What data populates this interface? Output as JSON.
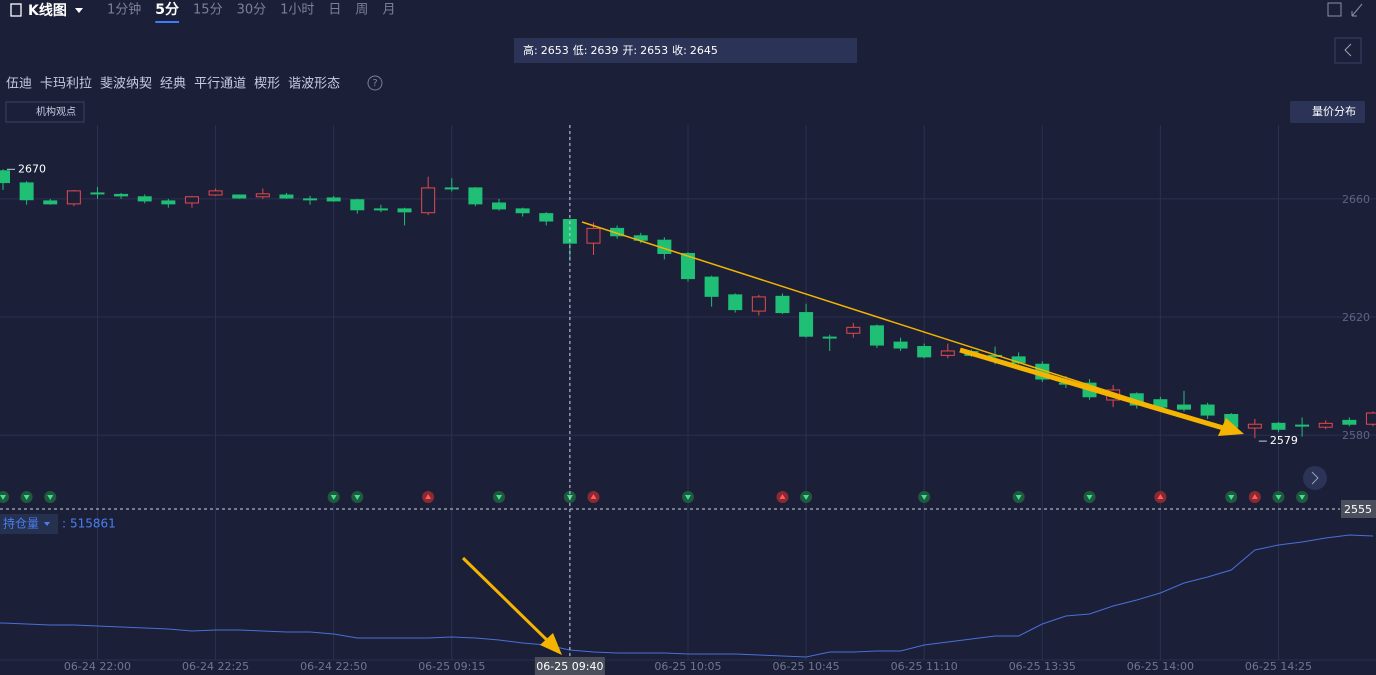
{
  "header": {
    "title": "K线图",
    "periods": [
      "1分钟",
      "5分",
      "15分",
      "30分",
      "1小时",
      "日",
      "周",
      "月"
    ],
    "active_period": 1
  },
  "tools": {
    "items": [
      "伍迪",
      "卡玛利拉",
      "斐波纳契",
      "经典",
      "平行通道",
      "楔形",
      "谐波形态"
    ],
    "help": "?",
    "institution": "机构观点",
    "volume_profile": "量价分布"
  },
  "tooltip": {
    "labels": [
      "高:",
      "低:",
      "开:",
      "收:"
    ]
  },
  "chart_data": {
    "type": "candlestick",
    "categories": [
      null,
      null,
      null,
      null,
      "06-24 22:00",
      null,
      null,
      null,
      null,
      "06-24 22:25",
      null,
      null,
      null,
      null,
      "06-24 22:50",
      null,
      null,
      null,
      null,
      "06-25 09:15",
      null,
      null,
      null,
      null,
      "06-25 09:40",
      null,
      null,
      null,
      null,
      "06-25 10:05",
      null,
      null,
      null,
      null,
      "06-25 10:45",
      null,
      null,
      null,
      null,
      "06-25 11:10",
      null,
      null,
      null,
      null,
      "06-25 13:35",
      null,
      null,
      null,
      null,
      "06-25 14:00",
      null,
      null,
      null,
      null,
      "06-25 14:25",
      null,
      null,
      null,
      null
    ],
    "open": [
      2669.5,
      2665.4,
      2659.3,
      2658.3,
      2662,
      2661.5,
      2660.7,
      2659.3,
      2658.6,
      2661.3,
      2661.3,
      2660.7,
      2661.3,
      2660,
      2660.3,
      2659.7,
      2656.6,
      2656.6,
      2655.3,
      2663.7,
      2663.7,
      2658.6,
      2656.6,
      2655,
      2653,
      2645,
      2650,
      2647.5,
      2646,
      2641.5,
      2633.5,
      2627.5,
      2622,
      2627,
      2621.5,
      2613.2,
      2614.5,
      2617,
      2611.5,
      2610,
      2607,
      2608.3,
      2607,
      2606.5,
      2604,
      2597.6,
      2597.6,
      2591.9,
      2594,
      2592,
      2590.2,
      2590.2,
      2587,
      2582.4,
      2584,
      2583.4,
      2582.7,
      2585,
      2583.7
    ],
    "high": [
      2670,
      2666,
      2660,
      2663,
      2664,
      2662,
      2661.5,
      2660,
      2661,
      2663.5,
      2661.5,
      2663.5,
      2662,
      2661,
      2661,
      2660,
      2658,
      2657,
      2667.5,
      2667,
      2664,
      2660,
      2657,
      2655.5,
      2653,
      2652,
      2651,
      2648.5,
      2647,
      2642,
      2634,
      2628,
      2627.5,
      2628,
      2624.5,
      2614,
      2618,
      2617.5,
      2613,
      2611,
      2611,
      2609,
      2610,
      2608,
      2605,
      2600,
      2599,
      2597,
      2594.5,
      2593,
      2595,
      2591,
      2587.5,
      2585.5,
      2584.5,
      2586,
      2585,
      2586,
      2588
    ],
    "low": [
      2663,
      2658,
      2658,
      2657.5,
      2660,
      2660,
      2658.5,
      2657,
      2657,
      2661,
      2660,
      2660,
      2660,
      2658,
      2659,
      2655,
      2655.5,
      2651,
      2654.5,
      2662.5,
      2657.5,
      2656,
      2654,
      2651,
      2639,
      2641,
      2646.5,
      2645,
      2639.5,
      2632,
      2623.5,
      2621.5,
      2620.5,
      2621,
      2613,
      2608.5,
      2613,
      2609.5,
      2608.5,
      2606,
      2606,
      2606.5,
      2604,
      2604,
      2598,
      2596,
      2592,
      2589.5,
      2589,
      2588.5,
      2588,
      2585.5,
      2581,
      2579,
      2581,
      2579.5,
      2582,
      2583,
      2583
    ],
    "close": [
      2665.5,
      2659.7,
      2658.3,
      2662.7,
      2662,
      2661,
      2659.3,
      2658.3,
      2660.7,
      2662.7,
      2660.3,
      2661.7,
      2660.3,
      2660,
      2659.3,
      2656.3,
      2656.6,
      2655.6,
      2663.7,
      2663.7,
      2658.3,
      2656.6,
      2655.3,
      2652.5,
      2645,
      2650,
      2647.5,
      2646,
      2641.5,
      2633,
      2627,
      2622.5,
      2626.8,
      2621.5,
      2613.5,
      2613.2,
      2616.5,
      2610.5,
      2609.5,
      2606.5,
      2608.5,
      2607,
      2607,
      2604.5,
      2599,
      2597.6,
      2593,
      2595.3,
      2590.2,
      2589.5,
      2588.8,
      2586.8,
      2582.7,
      2583.7,
      2582,
      2583.4,
      2584,
      2583.7,
      2587.5
    ],
    "up_color": "#e5484d",
    "down_color": "#1fbf75",
    "ylim": [
      2555,
      2685
    ],
    "yticks": [
      2580,
      2620,
      2660
    ],
    "grid": true,
    "selected": 24,
    "crosshair_price": 2555,
    "high_marker": 0,
    "low_marker": 53,
    "open_interest": {
      "name": "持仓量",
      "separator": ":",
      "color": "#4a6fd8",
      "values": [
        519911,
        519761,
        519611,
        519611,
        519461,
        519311,
        519161,
        519011,
        518711,
        518861,
        518861,
        518711,
        518561,
        518561,
        518261,
        517661,
        517661,
        517661,
        517661,
        517811,
        517661,
        517361,
        516911,
        516611,
        515861,
        515561,
        515411,
        515411,
        515411,
        515261,
        515261,
        515261,
        515111,
        514961,
        514811,
        515561,
        515561,
        515711,
        515711,
        516611,
        517061,
        517511,
        517961,
        517961,
        519761,
        520961,
        521261,
        522461,
        523361,
        524411,
        525911,
        526811,
        527861,
        530861,
        531611,
        532061,
        532661,
        533111,
        532961
      ]
    }
  }
}
